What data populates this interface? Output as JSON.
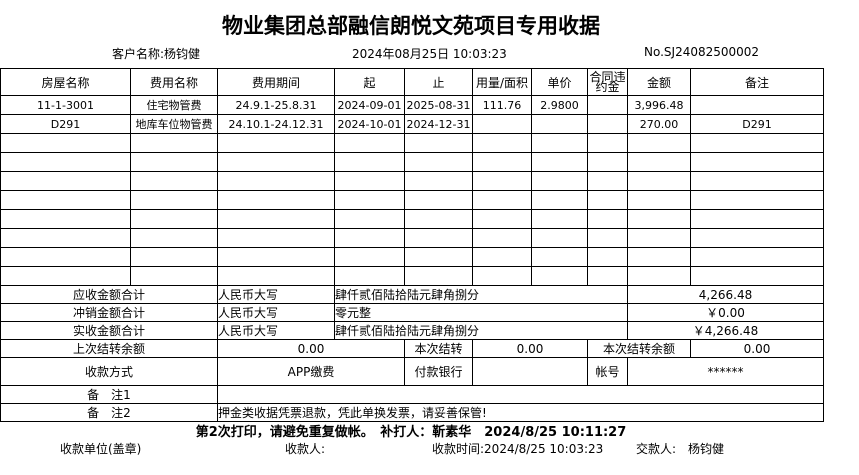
{
  "title": "物业集团总部融信朗悦文苑项目专用收据",
  "customer": "客户名称:杨钧健",
  "datetime": "2024年08月25日 10:03:23",
  "number": "No.SJ24082500002",
  "headers": [
    "房屋名称",
    "费用名称",
    "费用期间",
    "起",
    "止",
    "用量/面积",
    "单价",
    "合同违约金",
    "金额",
    "备注"
  ],
  "rows": [
    [
      "11-1-3001",
      "住宅物管费",
      "24.9.1-25.8.31",
      "2024-09-01",
      "2025-08-31",
      "111.76",
      "2.9800",
      "",
      "3,996.48",
      ""
    ],
    [
      "D291",
      "地库车位物管费",
      "24.10.1-24.12.31",
      "2024-10-01",
      "2024-12-31",
      "",
      "",
      "",
      "270.00",
      "D291"
    ],
    [
      "",
      "",
      "",
      "",
      "",
      "",
      "",
      "",
      "",
      ""
    ],
    [
      "",
      "",
      "",
      "",
      "",
      "",
      "",
      "",
      "",
      ""
    ],
    [
      "",
      "",
      "",
      "",
      "",
      "",
      "",
      "",
      "",
      ""
    ],
    [
      "",
      "",
      "",
      "",
      "",
      "",
      "",
      "",
      "",
      ""
    ],
    [
      "",
      "",
      "",
      "",
      "",
      "",
      "",
      "",
      "",
      ""
    ],
    [
      "",
      "",
      "",
      "",
      "",
      "",
      "",
      "",
      "",
      ""
    ],
    [
      "",
      "",
      "",
      "",
      "",
      "",
      "",
      "",
      "",
      ""
    ],
    [
      "",
      "",
      "",
      "",
      "",
      "",
      "",
      "",
      "",
      ""
    ]
  ],
  "summary": [
    {
      "label": "应收金额合计",
      "rmb": "人民币大写",
      "words": "肆仟贰佰陆拾陆元肆角捌分",
      "amount": "4,266.48"
    },
    {
      "label": "冲销金额合计",
      "rmb": "人民币大写",
      "words": "零元整",
      "amount": "￥0.00"
    },
    {
      "label": "实收金额合计",
      "rmb": "人民币大写",
      "words": "肆仟贰佰陆拾陆元肆角捌分",
      "amount": "￥4,266.48"
    }
  ],
  "carry": {
    "prev_label": "上次结转余额",
    "prev": "0.00",
    "this_label": "本次结转",
    "this": "0.00",
    "bal_label": "本次结转余额",
    "bal": "0.00"
  },
  "payment": {
    "method_label": "收款方式",
    "method": "APP缴费",
    "bank_label": "付款银行",
    "bank": "",
    "account_label": "帐号",
    "account": "******"
  },
  "remark1": {
    "label": "备　注1",
    "value": ""
  },
  "remark2": {
    "label": "备　注2",
    "value": "押金类收据凭票退款，凭此单换发票，请妥善保管!"
  },
  "reprint": "第2次打印，请避免重复做帐。　补打人：靳素华　2024/8/25 10:11:27",
  "footer": {
    "unit": "收款单位(盖章)",
    "receiver": "收款人:",
    "time": "收款时间:2024/8/25 10:03:23",
    "payer": "交款人:　杨钧健"
  }
}
